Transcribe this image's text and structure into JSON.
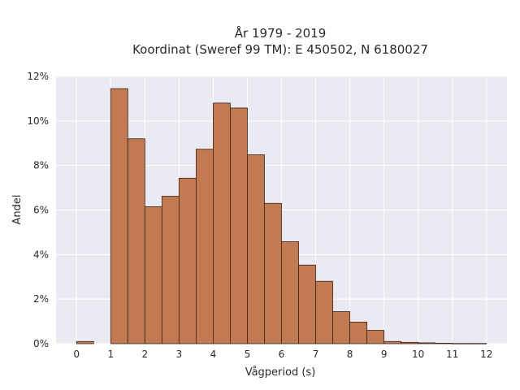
{
  "chart_data": {
    "type": "bar",
    "title": "År 1979 - 2019",
    "subtitle": "Koordinat (Sweref 99 TM): E 450502, N 6180027",
    "xlabel": "Vågperiod (s)",
    "ylabel": "Andel",
    "bin_width": 0.5,
    "xlim": [
      -0.6,
      12.6
    ],
    "ylim": [
      0,
      12
    ],
    "x_ticks": [
      0,
      1,
      2,
      3,
      4,
      5,
      6,
      7,
      8,
      9,
      10,
      11,
      12
    ],
    "x_tick_labels": [
      "0",
      "1",
      "2",
      "3",
      "4",
      "5",
      "6",
      "7",
      "8",
      "9",
      "10",
      "11",
      "12"
    ],
    "y_ticks": [
      0,
      2,
      4,
      6,
      8,
      10,
      12
    ],
    "y_tick_labels": [
      "0%",
      "2%",
      "4%",
      "6%",
      "8%",
      "10%",
      "12%"
    ],
    "grid": true,
    "bar_color": "#c27a52",
    "bar_edge_color": "#3b2317",
    "plot_background": "#eaeaf2",
    "bins": [
      {
        "start": 0.0,
        "value": 0.1
      },
      {
        "start": 1.0,
        "value": 11.45
      },
      {
        "start": 1.5,
        "value": 9.2
      },
      {
        "start": 2.0,
        "value": 6.15
      },
      {
        "start": 2.5,
        "value": 6.62
      },
      {
        "start": 3.0,
        "value": 7.43
      },
      {
        "start": 3.5,
        "value": 8.73
      },
      {
        "start": 4.0,
        "value": 10.8
      },
      {
        "start": 4.5,
        "value": 10.58
      },
      {
        "start": 5.0,
        "value": 8.48
      },
      {
        "start": 5.5,
        "value": 6.3
      },
      {
        "start": 6.0,
        "value": 4.58
      },
      {
        "start": 6.5,
        "value": 3.53
      },
      {
        "start": 7.0,
        "value": 2.8
      },
      {
        "start": 7.5,
        "value": 1.44
      },
      {
        "start": 8.0,
        "value": 0.97
      },
      {
        "start": 8.5,
        "value": 0.6
      },
      {
        "start": 9.0,
        "value": 0.1
      },
      {
        "start": 9.5,
        "value": 0.06
      },
      {
        "start": 10.0,
        "value": 0.04
      },
      {
        "start": 10.5,
        "value": 0.02
      },
      {
        "start": 11.0,
        "value": 0.01
      },
      {
        "start": 11.5,
        "value": 0.01
      }
    ]
  }
}
